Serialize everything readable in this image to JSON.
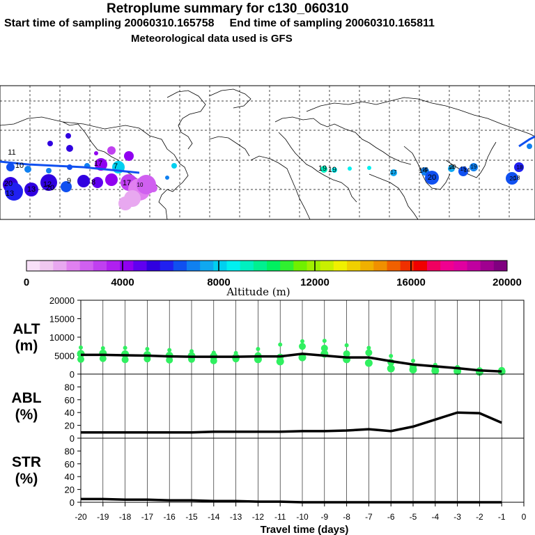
{
  "header": {
    "title": "Retroplume summary for c130_060310",
    "start_label": "Start time of sampling 20060310.165758",
    "end_label": "End time of sampling 20060310.165811",
    "met_label": "Meteorological data used is GFS"
  },
  "colorbar": {
    "title": "Altitude (m)",
    "ticks": [
      "0",
      "4000",
      "8000",
      "12000",
      "16000",
      "20000"
    ],
    "colors": [
      "#f8e0f8",
      "#f0c8f0",
      "#e8a8f0",
      "#e080f0",
      "#d060f0",
      "#c040f0",
      "#b020f0",
      "#9000f0",
      "#6000f0",
      "#3000e0",
      "#2020f0",
      "#1050f0",
      "#1080f0",
      "#10a8f0",
      "#00d0f0",
      "#00f0f0",
      "#00f0c0",
      "#00f090",
      "#00f060",
      "#30f030",
      "#70f000",
      "#a0f000",
      "#c8f000",
      "#f0f000",
      "#f0d000",
      "#f0b000",
      "#f09000",
      "#f06000",
      "#f03000",
      "#f00000",
      "#f00060",
      "#f00090",
      "#e000a0",
      "#c000a0",
      "#a00090",
      "#800080"
    ]
  },
  "map": {
    "labels": [
      "11",
      "10",
      "17",
      "13",
      "12",
      "20",
      "20",
      "13",
      "9",
      "8",
      "7",
      "17",
      "19",
      "14",
      "20",
      "19",
      "14",
      "20",
      "19",
      "17",
      "14",
      "20",
      "14",
      "15",
      "18",
      "18",
      "10"
    ]
  },
  "chart_data": [
    {
      "type": "line",
      "name": "ALT",
      "ylabel": [
        "ALT",
        "(m)"
      ],
      "ylim": [
        0,
        20000
      ],
      "yticks": [
        0,
        5000,
        10000,
        15000,
        20000
      ],
      "x": [
        -20,
        -19,
        -18,
        -17,
        -16,
        -15,
        -14,
        -13,
        -12,
        -11,
        -10,
        -9,
        -8,
        -7,
        -6,
        -5,
        -4,
        -3,
        -2,
        -1
      ],
      "values": [
        5200,
        5200,
        5100,
        5000,
        4800,
        4700,
        4700,
        4700,
        4800,
        4800,
        5500,
        5000,
        4500,
        4500,
        3500,
        2600,
        2100,
        1600,
        1000,
        700
      ],
      "points": [
        {
          "x": -20,
          "y": [
            7200,
            4000,
            5500
          ]
        },
        {
          "x": -19,
          "y": [
            7000,
            4200,
            5600
          ]
        },
        {
          "x": -18,
          "y": [
            7100,
            3900,
            5400
          ]
        },
        {
          "x": -17,
          "y": [
            6800,
            4100,
            5200
          ]
        },
        {
          "x": -16,
          "y": [
            6500,
            3800,
            5000
          ]
        },
        {
          "x": -15,
          "y": [
            6200,
            4000,
            4900
          ]
        },
        {
          "x": -14,
          "y": [
            5800,
            3600,
            4800
          ]
        },
        {
          "x": -13,
          "y": [
            5700,
            4100,
            4500
          ]
        },
        {
          "x": -12,
          "y": [
            6800,
            5000,
            4000
          ]
        },
        {
          "x": -11,
          "y": [
            8000,
            4600,
            3400
          ]
        },
        {
          "x": -10,
          "y": [
            8900,
            7500,
            4500
          ]
        },
        {
          "x": -9,
          "y": [
            9000,
            7000,
            5500
          ]
        },
        {
          "x": -8,
          "y": [
            7800,
            5500,
            4000
          ]
        },
        {
          "x": -7,
          "y": [
            7100,
            5800,
            3000
          ]
        },
        {
          "x": -6,
          "y": [
            4900,
            3200,
            1500
          ]
        },
        {
          "x": -5,
          "y": [
            3600,
            2000,
            1200
          ]
        },
        {
          "x": -4,
          "y": [
            2500,
            1700,
            900
          ]
        },
        {
          "x": -3,
          "y": [
            1900,
            1400,
            800
          ]
        },
        {
          "x": -2,
          "y": [
            1300,
            900,
            600
          ]
        },
        {
          "x": -1,
          "y": [
            1300,
            1000,
            700
          ]
        }
      ]
    },
    {
      "type": "line",
      "name": "ABL",
      "ylabel": [
        "ABL",
        "(%)"
      ],
      "ylim": [
        0,
        100
      ],
      "yticks": [
        0,
        20,
        40,
        60,
        80
      ],
      "x": [
        -20,
        -19,
        -18,
        -17,
        -16,
        -15,
        -14,
        -13,
        -12,
        -11,
        -10,
        -9,
        -8,
        -7,
        -6,
        -5,
        -4,
        -3,
        -2,
        -1
      ],
      "values": [
        9,
        9,
        9,
        9,
        9,
        9,
        10,
        10,
        10,
        10,
        11,
        11,
        12,
        14,
        11,
        18,
        29,
        40,
        39,
        24
      ]
    },
    {
      "type": "line",
      "name": "STR",
      "ylabel": [
        "STR",
        "(%)"
      ],
      "ylim": [
        0,
        100
      ],
      "yticks": [
        0,
        20,
        40,
        60,
        80
      ],
      "x": [
        -20,
        -19,
        -18,
        -17,
        -16,
        -15,
        -14,
        -13,
        -12,
        -11,
        -10,
        -9,
        -8,
        -7,
        -6,
        -5,
        -4,
        -3,
        -2,
        -1
      ],
      "values": [
        5,
        5,
        4,
        4,
        3,
        3,
        2,
        2,
        1,
        1,
        0,
        0,
        0,
        0,
        0,
        0,
        0,
        0,
        0,
        0
      ]
    }
  ],
  "xaxis": {
    "label": "Travel time (days)",
    "ticks": [
      "-20",
      "-19",
      "-18",
      "-17",
      "-16",
      "-15",
      "-14",
      "-13",
      "-12",
      "-11",
      "-10",
      "-9",
      "-8",
      "-7",
      "-6",
      "-5",
      "-4",
      "-3",
      "-2",
      "-1",
      "0"
    ]
  }
}
